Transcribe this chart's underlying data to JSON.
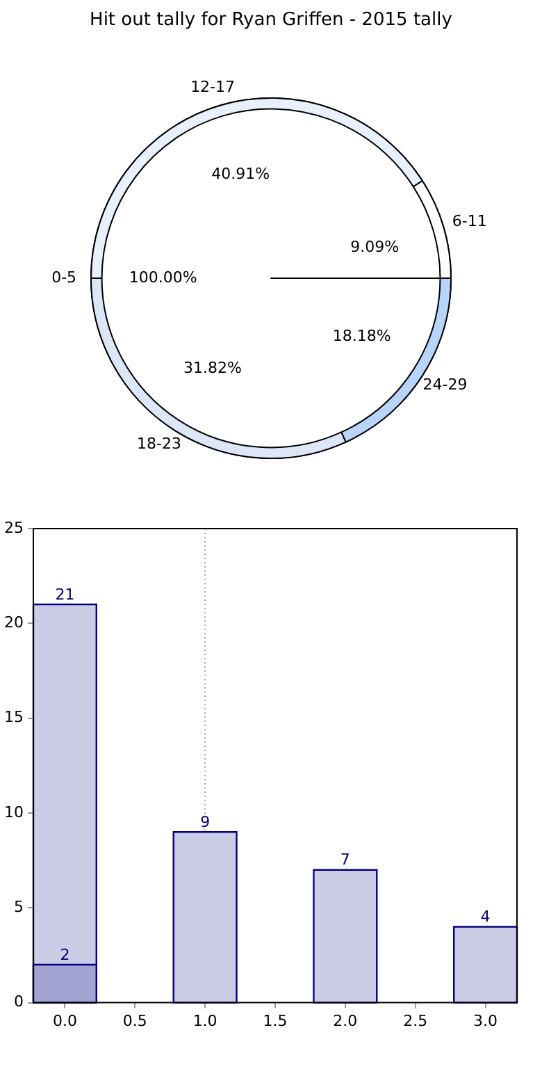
{
  "chart_data": [
    {
      "type": "donut",
      "title": "Hit out tally for Ryan Griffen - 2015 tally",
      "categories": [
        "24-29",
        "18-23",
        "12-17",
        "6-11"
      ],
      "values": [
        18.18,
        31.82,
        40.91,
        9.09
      ],
      "colors": [
        "#b7d5fa",
        "#dce6f7",
        "#e8f0fc",
        "#ffffff"
      ],
      "value_labels": [
        "18.18%",
        "31.82%",
        "40.91%",
        "9.09%"
      ]
    },
    {
      "type": "pie",
      "categories": [
        "0-5"
      ],
      "values": [
        100
      ],
      "colors": [
        "#ffffff"
      ],
      "value_labels": [
        "100.00%"
      ]
    },
    {
      "type": "bar",
      "x": [
        0,
        1,
        2,
        3
      ],
      "series": [
        {
          "color": "#cccce6",
          "values": [
            21,
            9,
            7,
            4
          ]
        },
        {
          "color": "#a3a3d1",
          "x": [
            0
          ],
          "values": [
            2
          ]
        }
      ],
      "data_labels": true,
      "xlim": [
        -0.225,
        3.225
      ],
      "ylim": [
        0,
        25
      ],
      "xticks": [
        {
          "value": 0,
          "label": "0.0"
        },
        {
          "value": 0.5,
          "label": "0.5"
        },
        {
          "value": 1,
          "label": "1.0"
        },
        {
          "value": 1.5,
          "label": "1.5"
        },
        {
          "value": 2,
          "label": "2.0"
        },
        {
          "value": 2.5,
          "label": "2.5"
        },
        {
          "value": 3,
          "label": "3.0"
        }
      ],
      "yticks": [
        0,
        5,
        10,
        15,
        20,
        25
      ],
      "ref_lines": [
        {
          "axis": "x",
          "value": 1,
          "color": "#aaaaaa",
          "line_style": "dotted"
        }
      ]
    }
  ]
}
